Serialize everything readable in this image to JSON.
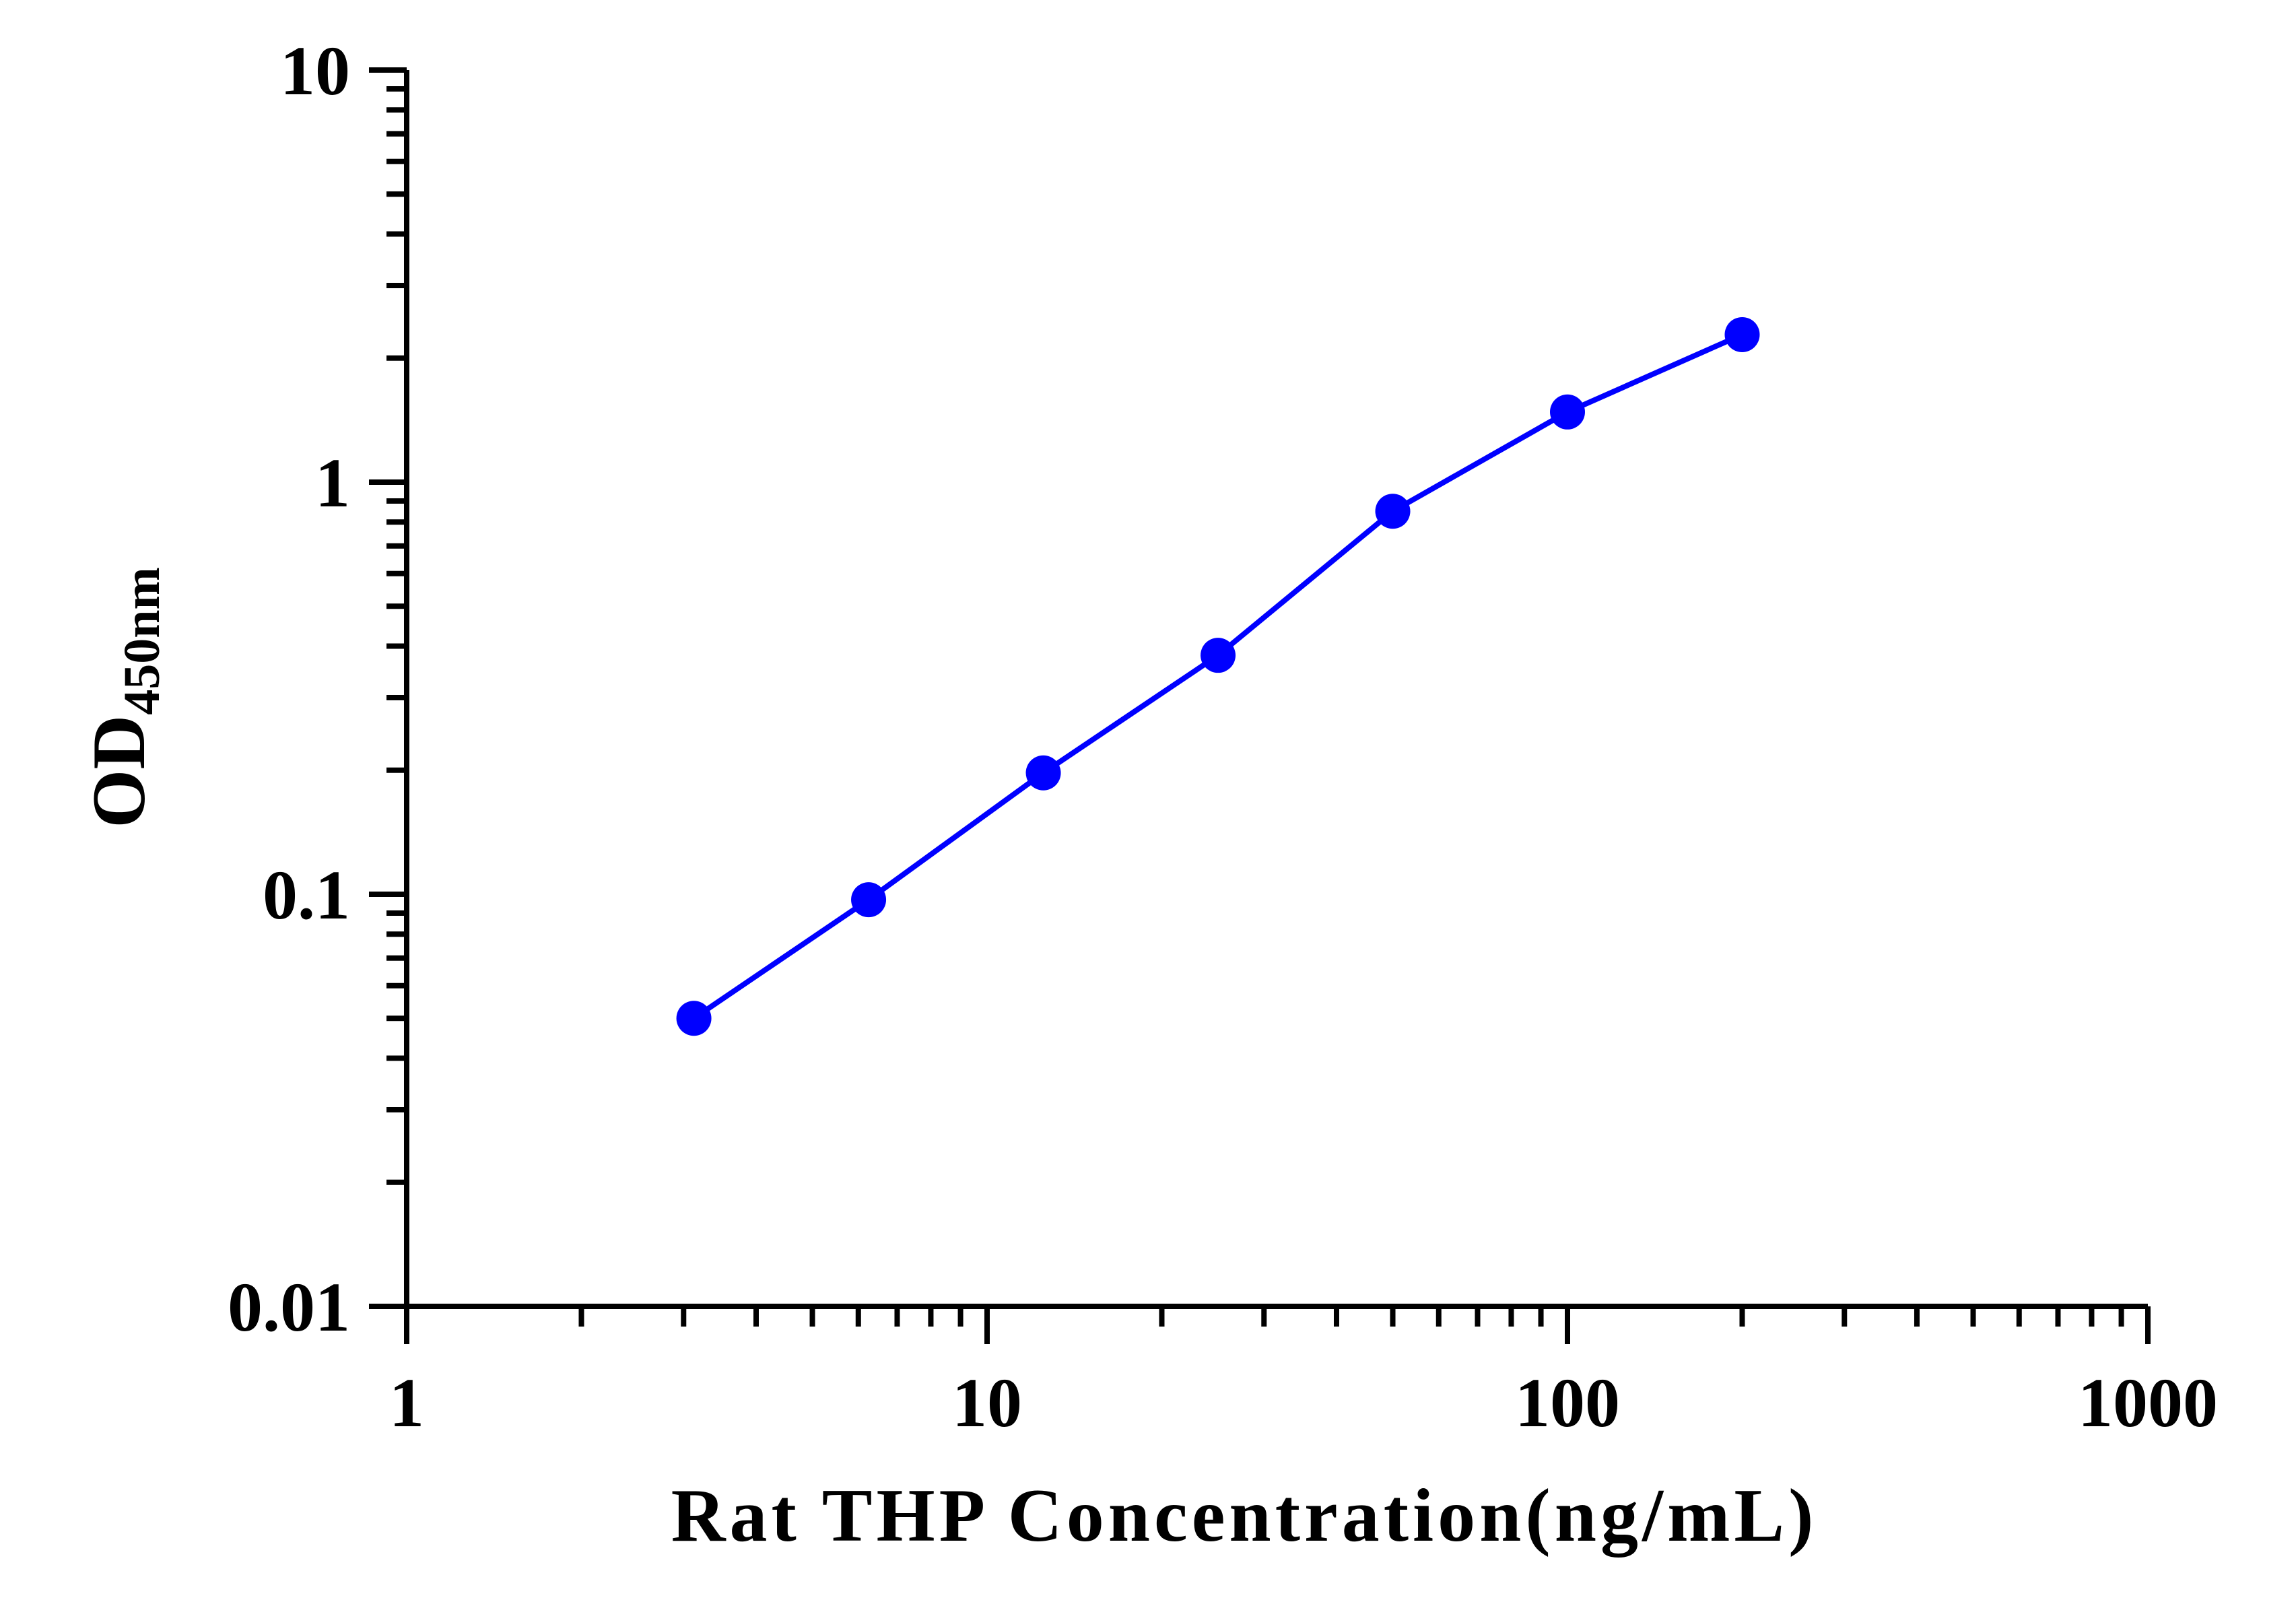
{
  "chart_data": {
    "type": "line",
    "title": "",
    "xlabel": "Rat THP Concentration(ng/mL)",
    "ylabel": {
      "main": "OD",
      "subscript": "450nm"
    },
    "xscale": "log",
    "yscale": "log",
    "xlim": [
      1,
      1000
    ],
    "ylim": [
      0.01,
      10
    ],
    "x_ticks": [
      {
        "value": 1,
        "label": "1"
      },
      {
        "value": 10,
        "label": "10"
      },
      {
        "value": 100,
        "label": "100"
      },
      {
        "value": 1000,
        "label": "1000"
      }
    ],
    "y_ticks": [
      {
        "value": 0.01,
        "label": "0.01"
      },
      {
        "value": 0.1,
        "label": "0.1"
      },
      {
        "value": 1,
        "label": "1"
      },
      {
        "value": 10,
        "label": "10"
      }
    ],
    "grid": false,
    "legend": "none",
    "series": [
      {
        "color": "#0000ff",
        "marker": "circle",
        "x": [
          3.125,
          6.25,
          12.5,
          25,
          50,
          100,
          200
        ],
        "y": [
          0.05,
          0.097,
          0.197,
          0.38,
          0.85,
          1.48,
          2.28
        ]
      }
    ]
  }
}
